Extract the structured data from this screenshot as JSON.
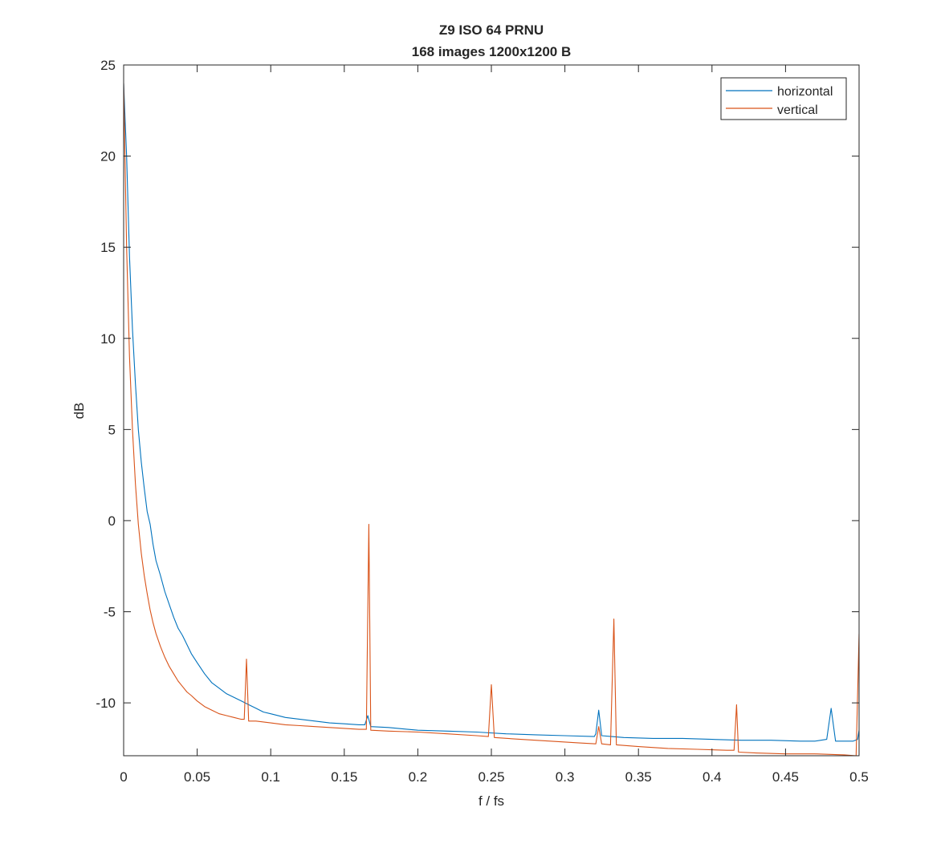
{
  "chart_data": {
    "type": "line",
    "title": "Z9 ISO 64 PRNU",
    "subtitle": "168 images 1200x1200 B",
    "xlabel": "f / fs",
    "ylabel": "dB",
    "xlim": [
      0,
      0.5
    ],
    "ylim": [
      -12.9,
      25
    ],
    "x_ticks": [
      "0",
      "0.05",
      "0.1",
      "0.15",
      "0.2",
      "0.25",
      "0.3",
      "0.35",
      "0.4",
      "0.45",
      "0.5"
    ],
    "y_ticks": [
      "-10",
      "-5",
      "0",
      "5",
      "10",
      "15",
      "20",
      "25"
    ],
    "grid": false,
    "legend_position": "top-right",
    "series": [
      {
        "name": "horizontal",
        "color": "#0072BD",
        "points": [
          [
            0.0,
            24.0
          ],
          [
            0.002,
            20.0
          ],
          [
            0.004,
            14.5
          ],
          [
            0.006,
            10.5
          ],
          [
            0.008,
            7.5
          ],
          [
            0.01,
            5.0
          ],
          [
            0.012,
            3.2
          ],
          [
            0.014,
            1.8
          ],
          [
            0.016,
            0.5
          ],
          [
            0.018,
            -0.2
          ],
          [
            0.02,
            -1.3
          ],
          [
            0.022,
            -2.2
          ],
          [
            0.025,
            -3.0
          ],
          [
            0.028,
            -3.9
          ],
          [
            0.031,
            -4.6
          ],
          [
            0.034,
            -5.3
          ],
          [
            0.037,
            -5.9
          ],
          [
            0.04,
            -6.3
          ],
          [
            0.043,
            -6.8
          ],
          [
            0.046,
            -7.3
          ],
          [
            0.05,
            -7.8
          ],
          [
            0.055,
            -8.4
          ],
          [
            0.06,
            -8.9
          ],
          [
            0.065,
            -9.2
          ],
          [
            0.07,
            -9.5
          ],
          [
            0.075,
            -9.7
          ],
          [
            0.08,
            -9.9
          ],
          [
            0.085,
            -10.1
          ],
          [
            0.09,
            -10.3
          ],
          [
            0.095,
            -10.5
          ],
          [
            0.1,
            -10.6
          ],
          [
            0.11,
            -10.8
          ],
          [
            0.12,
            -10.9
          ],
          [
            0.13,
            -11.0
          ],
          [
            0.14,
            -11.1
          ],
          [
            0.15,
            -11.15
          ],
          [
            0.16,
            -11.2
          ],
          [
            0.164,
            -11.2
          ],
          [
            0.166,
            -10.7
          ],
          [
            0.168,
            -11.3
          ],
          [
            0.18,
            -11.35
          ],
          [
            0.2,
            -11.5
          ],
          [
            0.22,
            -11.55
          ],
          [
            0.24,
            -11.6
          ],
          [
            0.26,
            -11.7
          ],
          [
            0.28,
            -11.75
          ],
          [
            0.3,
            -11.8
          ],
          [
            0.32,
            -11.85
          ],
          [
            0.321,
            -11.7
          ],
          [
            0.323,
            -10.4
          ],
          [
            0.325,
            -11.8
          ],
          [
            0.34,
            -11.9
          ],
          [
            0.36,
            -11.95
          ],
          [
            0.38,
            -11.95
          ],
          [
            0.4,
            -12.0
          ],
          [
            0.42,
            -12.05
          ],
          [
            0.44,
            -12.05
          ],
          [
            0.46,
            -12.1
          ],
          [
            0.47,
            -12.1
          ],
          [
            0.478,
            -12.0
          ],
          [
            0.481,
            -10.3
          ],
          [
            0.484,
            -12.1
          ],
          [
            0.49,
            -12.1
          ],
          [
            0.496,
            -12.1
          ],
          [
            0.499,
            -12.0
          ],
          [
            0.5,
            -11.5
          ]
        ]
      },
      {
        "name": "vertical",
        "color": "#D95319",
        "points": [
          [
            0.0,
            24.0
          ],
          [
            0.002,
            15.0
          ],
          [
            0.004,
            9.0
          ],
          [
            0.006,
            5.0
          ],
          [
            0.008,
            2.0
          ],
          [
            0.01,
            -0.2
          ],
          [
            0.012,
            -1.8
          ],
          [
            0.014,
            -3.0
          ],
          [
            0.016,
            -4.0
          ],
          [
            0.018,
            -4.9
          ],
          [
            0.02,
            -5.6
          ],
          [
            0.022,
            -6.2
          ],
          [
            0.025,
            -6.9
          ],
          [
            0.028,
            -7.5
          ],
          [
            0.031,
            -8.0
          ],
          [
            0.034,
            -8.4
          ],
          [
            0.037,
            -8.8
          ],
          [
            0.04,
            -9.1
          ],
          [
            0.043,
            -9.4
          ],
          [
            0.046,
            -9.6
          ],
          [
            0.05,
            -9.9
          ],
          [
            0.055,
            -10.2
          ],
          [
            0.06,
            -10.4
          ],
          [
            0.065,
            -10.6
          ],
          [
            0.07,
            -10.7
          ],
          [
            0.075,
            -10.8
          ],
          [
            0.08,
            -10.9
          ],
          [
            0.082,
            -10.9
          ],
          [
            0.0835,
            -7.6
          ],
          [
            0.085,
            -11.0
          ],
          [
            0.09,
            -11.0
          ],
          [
            0.1,
            -11.1
          ],
          [
            0.11,
            -11.2
          ],
          [
            0.12,
            -11.25
          ],
          [
            0.13,
            -11.3
          ],
          [
            0.14,
            -11.35
          ],
          [
            0.15,
            -11.4
          ],
          [
            0.16,
            -11.45
          ],
          [
            0.165,
            -11.45
          ],
          [
            0.1667,
            -0.2
          ],
          [
            0.168,
            -11.5
          ],
          [
            0.18,
            -11.55
          ],
          [
            0.2,
            -11.6
          ],
          [
            0.22,
            -11.7
          ],
          [
            0.24,
            -11.8
          ],
          [
            0.248,
            -11.85
          ],
          [
            0.25,
            -9.0
          ],
          [
            0.252,
            -11.9
          ],
          [
            0.27,
            -12.0
          ],
          [
            0.29,
            -12.1
          ],
          [
            0.31,
            -12.2
          ],
          [
            0.321,
            -12.25
          ],
          [
            0.323,
            -11.3
          ],
          [
            0.325,
            -12.25
          ],
          [
            0.331,
            -12.3
          ],
          [
            0.3333,
            -5.4
          ],
          [
            0.335,
            -12.3
          ],
          [
            0.35,
            -12.4
          ],
          [
            0.37,
            -12.5
          ],
          [
            0.39,
            -12.55
          ],
          [
            0.41,
            -12.6
          ],
          [
            0.415,
            -12.6
          ],
          [
            0.4167,
            -10.1
          ],
          [
            0.418,
            -12.7
          ],
          [
            0.43,
            -12.75
          ],
          [
            0.45,
            -12.8
          ],
          [
            0.47,
            -12.8
          ],
          [
            0.49,
            -12.85
          ],
          [
            0.498,
            -12.9
          ],
          [
            0.5,
            -6.2
          ]
        ]
      }
    ]
  }
}
